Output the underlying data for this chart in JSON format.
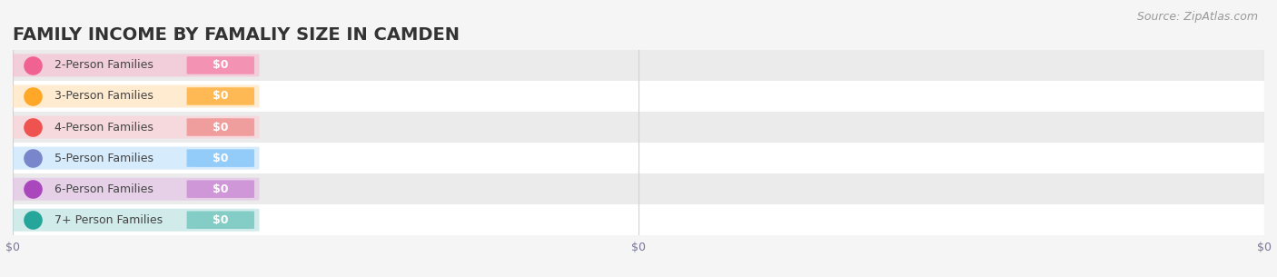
{
  "title": "FAMILY INCOME BY FAMALIY SIZE IN CAMDEN",
  "source": "Source: ZipAtlas.com",
  "categories": [
    "2-Person Families",
    "3-Person Families",
    "4-Person Families",
    "5-Person Families",
    "6-Person Families",
    "7+ Person Families"
  ],
  "values": [
    0,
    0,
    0,
    0,
    0,
    0
  ],
  "bar_colors": [
    "#f8bbd0",
    "#ffe0b2",
    "#ffcdd2",
    "#bbdefb",
    "#e1bee7",
    "#b2dfdb"
  ],
  "dot_colors": [
    "#f06292",
    "#ffa726",
    "#ef5350",
    "#7986cb",
    "#ab47bc",
    "#26a69a"
  ],
  "badge_colors": [
    "#f48fb1",
    "#ffb74d",
    "#ef9a9a",
    "#90caf9",
    "#ce93d8",
    "#80cbc4"
  ],
  "bg_color": "#f5f5f5",
  "row_even_color": "#ffffff",
  "row_odd_color": "#ebebeb",
  "grid_color": "#d0d0d0",
  "title_color": "#333333",
  "source_color": "#999999",
  "tick_label_color": "#777799",
  "value_label": "$0",
  "bar_height": 0.72,
  "title_fontsize": 14,
  "label_fontsize": 9,
  "tick_fontsize": 9,
  "source_fontsize": 9
}
